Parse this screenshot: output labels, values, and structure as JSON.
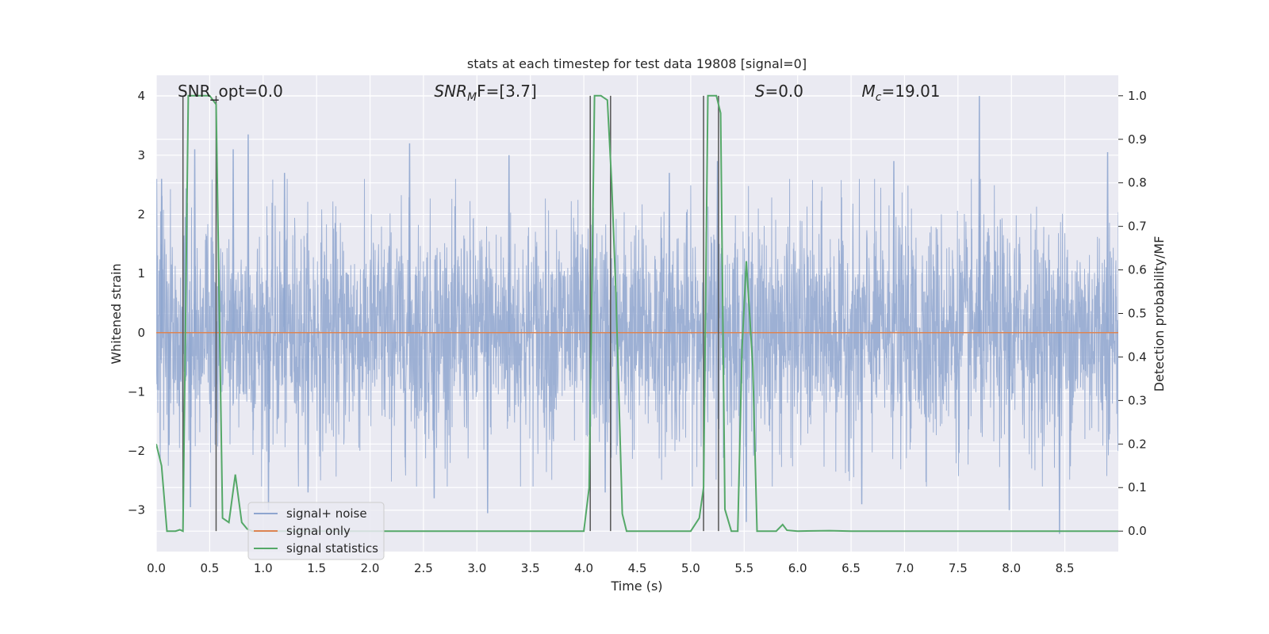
{
  "chart_data": {
    "type": "line",
    "title": "stats at each timestep for test data 19808 [signal=0]",
    "xlabel": "Time (s)",
    "ylabel": "Whitened strain",
    "ylabel_right": "Detection probability/MF",
    "xlim": [
      0.0,
      9.0
    ],
    "ylim": [
      -3.7,
      4.35
    ],
    "ylim_right": [
      -0.047,
      1.047
    ],
    "x_ticks": [
      "0.0",
      "0.5",
      "1.0",
      "1.5",
      "2.0",
      "2.5",
      "3.0",
      "3.5",
      "4.0",
      "4.5",
      "5.0",
      "5.5",
      "6.0",
      "6.5",
      "7.0",
      "7.5",
      "8.0",
      "8.5"
    ],
    "y_ticks": [
      "−3",
      "−2",
      "−1",
      "0",
      "1",
      "2",
      "3",
      "4"
    ],
    "y_right_ticks": [
      "0.0",
      "0.1",
      "0.2",
      "0.3",
      "0.4",
      "0.5",
      "0.6",
      "0.7",
      "0.8",
      "0.9",
      "1.0"
    ],
    "grid": true,
    "legend_position": "bottom-left",
    "annotations": [
      {
        "label": "SNR_opt=0.0",
        "x": 0.2
      },
      {
        "label": "SNR",
        "sub": "M",
        "tail": "F=[3.7]",
        "x": 2.6
      },
      {
        "label": "S",
        "tail": "=0.0",
        "x": 5.6
      },
      {
        "label": "M",
        "sub": "c",
        "tail": "=19.01",
        "x": 6.6
      }
    ],
    "series": [
      {
        "name": "signal+ noise",
        "color": "#8fa6cf",
        "note": "dense whitened-noise trace, approx. ±1 sigma body with spikes to about ±3.3",
        "spikes": [
          {
            "x": 0.05,
            "y": 2.6
          },
          {
            "x": 0.12,
            "y": -1.9
          },
          {
            "x": 0.36,
            "y": 3.1
          },
          {
            "x": 0.32,
            "y": -2.95
          },
          {
            "x": 0.72,
            "y": 3.1
          },
          {
            "x": 0.86,
            "y": 3.35
          },
          {
            "x": 1.05,
            "y": -3.0
          },
          {
            "x": 1.2,
            "y": 2.7
          },
          {
            "x": 1.42,
            "y": -2.7
          },
          {
            "x": 2.37,
            "y": 3.2
          },
          {
            "x": 2.6,
            "y": -2.8
          },
          {
            "x": 3.1,
            "y": -3.05
          },
          {
            "x": 3.3,
            "y": 3.0
          },
          {
            "x": 4.2,
            "y": -2.7
          },
          {
            "x": 4.8,
            "y": 2.7
          },
          {
            "x": 5.25,
            "y": 2.9
          },
          {
            "x": 5.52,
            "y": -3.2
          },
          {
            "x": 6.6,
            "y": -2.9
          },
          {
            "x": 6.9,
            "y": 2.9
          },
          {
            "x": 7.7,
            "y": 4.0
          },
          {
            "x": 7.98,
            "y": -3.0
          },
          {
            "x": 8.45,
            "y": -3.4
          },
          {
            "x": 8.9,
            "y": 3.05
          }
        ]
      },
      {
        "name": "signal only",
        "color": "#dd8452",
        "x": [
          0.0,
          9.0
        ],
        "y": [
          0.0,
          0.0
        ]
      },
      {
        "name": "signal statistics",
        "color": "#55a868",
        "axis": "right",
        "x": [
          0.0,
          0.05,
          0.1,
          0.18,
          0.22,
          0.25,
          0.3,
          0.35,
          0.4,
          0.45,
          0.5,
          0.56,
          0.62,
          0.68,
          0.74,
          0.8,
          0.85,
          0.9,
          1.0,
          1.5,
          2.0,
          2.5,
          3.0,
          3.5,
          4.0,
          4.05,
          4.1,
          4.16,
          4.22,
          4.26,
          4.3,
          4.36,
          4.4,
          4.46,
          4.5,
          4.6,
          4.8,
          5.0,
          5.08,
          5.12,
          5.16,
          5.2,
          5.24,
          5.28,
          5.32,
          5.38,
          5.44,
          5.48,
          5.52,
          5.58,
          5.62,
          5.66,
          5.7,
          5.8,
          5.86,
          5.9,
          6.0,
          6.3,
          6.5,
          7.0,
          8.0,
          9.0
        ],
        "y": [
          0.2,
          0.15,
          0.0,
          0.0,
          0.003,
          0.0,
          1.0,
          1.0,
          1.0,
          1.0,
          1.0,
          0.98,
          0.03,
          0.02,
          0.13,
          0.02,
          0.005,
          0.0,
          0.0,
          0.0,
          0.0,
          0.0,
          0.0,
          0.0,
          0.0,
          0.1,
          1.0,
          1.0,
          0.99,
          0.8,
          0.55,
          0.04,
          0.0,
          0.0,
          0.0,
          0.0,
          0.0,
          0.0,
          0.03,
          0.1,
          1.0,
          1.0,
          1.0,
          0.96,
          0.05,
          0.0,
          0.0,
          0.42,
          0.62,
          0.38,
          0.0,
          0.0,
          0.0,
          0.0,
          0.015,
          0.002,
          0.0,
          0.001,
          0.0,
          0.0,
          0.0,
          0.0
        ]
      }
    ],
    "vertical_markers": {
      "color": "#555555",
      "x": [
        0.25,
        0.56,
        4.06,
        4.25,
        5.12,
        5.26
      ]
    }
  }
}
